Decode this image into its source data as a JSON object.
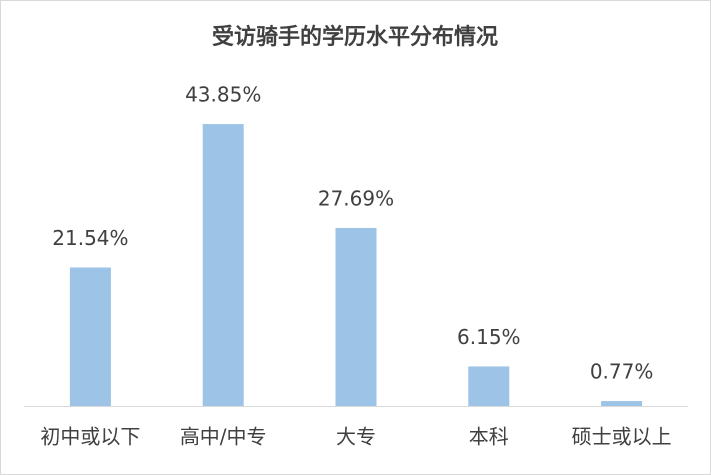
{
  "chart_data": {
    "type": "bar",
    "title": "受访骑手的学历水平分布情况",
    "categories": [
      "初中或以下",
      "高中/中专",
      "大专",
      "本科",
      "硕士或以上"
    ],
    "values": [
      21.54,
      43.85,
      27.69,
      6.15,
      0.77
    ],
    "value_labels": [
      "21.54%",
      "43.85%",
      "27.69%",
      "6.15%",
      "0.77%"
    ],
    "color": "#9dc3e6"
  }
}
